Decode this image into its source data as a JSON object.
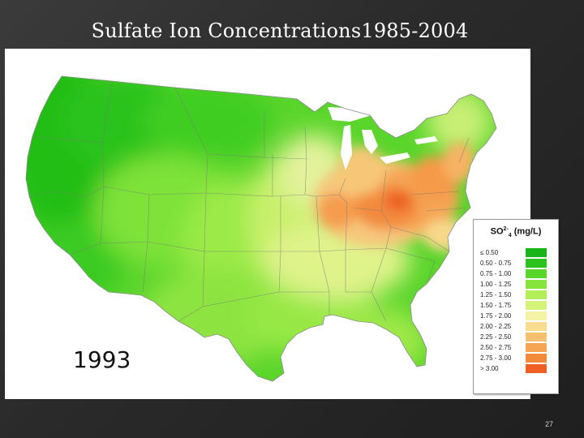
{
  "slide": {
    "title": "Sulfate Ion Concentrations1985-2004",
    "page_number": "27"
  },
  "map": {
    "year": "1993",
    "region": "contiguous United States",
    "colors": {
      "low": "#25c21b",
      "mid": "#d6f08a",
      "high": "#f07a2a",
      "peak": "#ef5b22"
    }
  },
  "legend": {
    "title_main": "SO",
    "title_sup": "2-",
    "title_sub": "4",
    "title_units": "(mg/L)",
    "items": [
      {
        "range": "≤ 0.50",
        "color": "#19b41a"
      },
      {
        "range": "0.50 - 0.75",
        "color": "#2cc31f"
      },
      {
        "range": "0.75 - 1.00",
        "color": "#58d62a"
      },
      {
        "range": "1.00 - 1.25",
        "color": "#86e43a"
      },
      {
        "range": "1.25 - 1.50",
        "color": "#b2ef5b"
      },
      {
        "range": "1.50 - 1.75",
        "color": "#d3f37b"
      },
      {
        "range": "1.75 - 2.00",
        "color": "#f4f3a6"
      },
      {
        "range": "2.00 - 2.25",
        "color": "#f8dc8f"
      },
      {
        "range": "2.25 - 2.50",
        "color": "#f7c06e"
      },
      {
        "range": "2.50 - 2.75",
        "color": "#f6a552"
      },
      {
        "range": "2.75 - 3.00",
        "color": "#f28a3a"
      },
      {
        "range": "> 3.00",
        "color": "#ee5f24"
      }
    ]
  }
}
